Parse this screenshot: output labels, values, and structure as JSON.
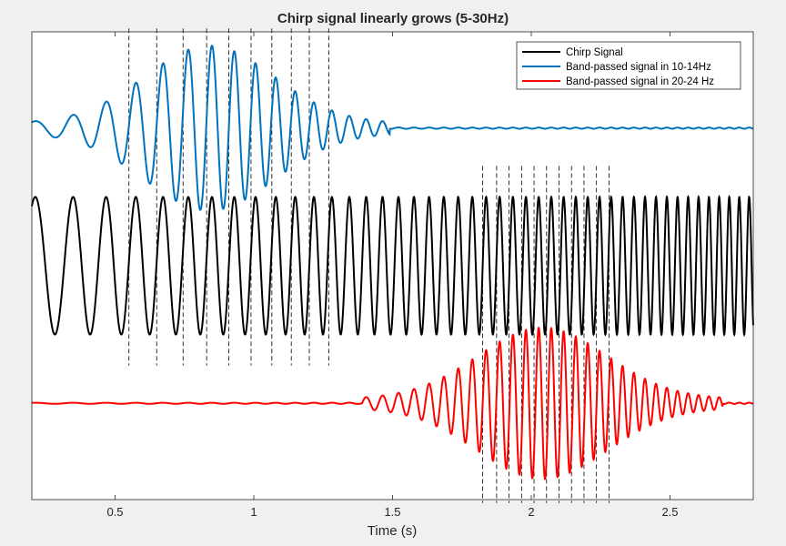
{
  "chart_data": {
    "type": "line",
    "title": "Chirp signal linearly grows (5-30Hz)",
    "xlabel": "Time (s)",
    "ylabel": "",
    "xlim": [
      0.2,
      2.8
    ],
    "x_ticks": [
      0.5,
      1,
      1.5,
      2,
      2.5
    ],
    "x_tick_labels": [
      "0.5",
      "1",
      "1.5",
      "2",
      "2.5"
    ],
    "y_ticks": [],
    "grid": false,
    "legend_position": "top-right",
    "signal": {
      "f_start_hz": 5,
      "f_end_hz": 30,
      "duration_s": 3
    },
    "series": [
      {
        "name": "Chirp Signal",
        "color": "#000000",
        "vertical_offset": 0,
        "amplitude": 1,
        "description_kind": "chirp"
      },
      {
        "name": "Band-passed signal in 10-14Hz",
        "color": "#0072bd",
        "vertical_offset": 2,
        "peak_amplitude": 1.2,
        "passband_hz": [
          10,
          14
        ],
        "description_kind": "bandpass"
      },
      {
        "name": "Band-passed signal in 20-24 Hz",
        "color": "#ff0000",
        "vertical_offset": -2,
        "peak_amplitude": 1.1,
        "passband_hz": [
          20,
          24
        ],
        "description_kind": "bandpass"
      }
    ],
    "peak_markers": [
      {
        "band": "10-14Hz",
        "x": [
          0.55,
          0.65,
          0.745,
          0.83,
          0.91,
          0.99,
          1.065,
          1.135,
          1.2,
          1.27
        ]
      },
      {
        "band": "20-24 Hz",
        "x": [
          1.825,
          1.875,
          1.92,
          1.965,
          2.01,
          2.055,
          2.1,
          2.145,
          2.19,
          2.235,
          2.28
        ]
      }
    ],
    "colors": {
      "axes_background": "#ffffff",
      "figure_background": "#f0f0f0",
      "axes_edge": "#262626"
    }
  }
}
